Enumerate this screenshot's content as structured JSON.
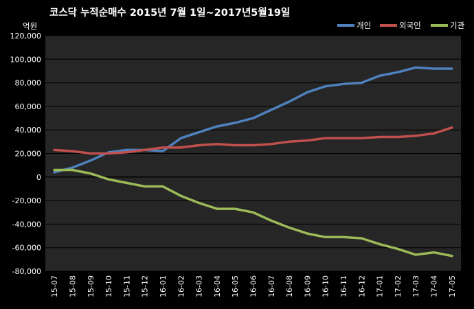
{
  "chart_data": {
    "type": "line",
    "title": "코스닥  누적순매수 2015년 7월 1일~2017년5월19일",
    "ylabel": "억원",
    "xlabel": "",
    "ylim": [
      -80000,
      120000
    ],
    "yticks": [
      120000,
      100000,
      80000,
      60000,
      40000,
      20000,
      0,
      -20000,
      -40000,
      -60000,
      -80000
    ],
    "ytick_labels": [
      "120,000",
      "100,000",
      "80,000",
      "60,000",
      "40,000",
      "20,000",
      "0",
      "-20,000",
      "-40,000",
      "-60,000",
      "-80,000"
    ],
    "categories": [
      "15-07",
      "15-08",
      "15-09",
      "15-10",
      "15-11",
      "15-12",
      "16-01",
      "16-02",
      "16-03",
      "16-04",
      "16-05",
      "16-06",
      "16-07",
      "16-08",
      "16-09",
      "16-10",
      "16-11",
      "16-12",
      "17-01",
      "17-02",
      "17-03",
      "17-04",
      "17-05"
    ],
    "grid": true,
    "legend_position": "top-right",
    "background": "#262626",
    "series": [
      {
        "name": "개인",
        "color": "#4F81BD",
        "values": [
          4000,
          8000,
          14000,
          21000,
          23000,
          23000,
          22000,
          33000,
          38000,
          43000,
          46000,
          50000,
          57000,
          64000,
          72000,
          77000,
          79000,
          80000,
          86000,
          89000,
          93000,
          92000,
          92000
        ]
      },
      {
        "name": "외국인",
        "color": "#C0504D",
        "values": [
          23000,
          22000,
          20000,
          20000,
          21000,
          23000,
          25000,
          25000,
          27000,
          28000,
          27000,
          27000,
          28000,
          30000,
          31000,
          33000,
          33000,
          33000,
          34000,
          34000,
          35000,
          37000,
          42000
        ]
      },
      {
        "name": "기관",
        "color": "#9BBB59",
        "values": [
          6000,
          6000,
          3000,
          -2000,
          -5000,
          -8000,
          -8000,
          -16000,
          -22000,
          -27000,
          -27000,
          -30000,
          -37000,
          -43000,
          -48000,
          -51000,
          -51000,
          -52000,
          -57000,
          -61000,
          -66000,
          -64000,
          -67000
        ]
      }
    ]
  }
}
